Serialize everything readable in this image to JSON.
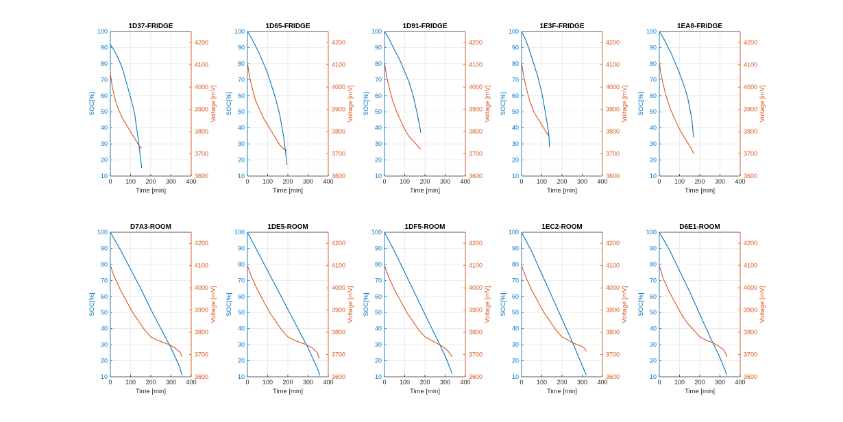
{
  "colors": {
    "soc": "#0072BD",
    "voltage": "#D95319",
    "axis_dark": "#262626",
    "grid": "#E6E6E6"
  },
  "chart_data": [
    {
      "type": "line",
      "title": "1D37-FRIDGE",
      "xlabel": "Time [min]",
      "ylabel_left": "SOC[%]",
      "ylabel_right": "Voltage [mV]",
      "xlim": [
        0,
        400
      ],
      "ylim_left": [
        10,
        100
      ],
      "ylim_right": [
        3600,
        4250
      ],
      "xticks": [
        0,
        100,
        200,
        300,
        400
      ],
      "yticks_left": [
        10,
        20,
        30,
        40,
        50,
        60,
        70,
        80,
        90,
        100
      ],
      "yticks_right": [
        3600,
        3700,
        3800,
        3900,
        4000,
        4100,
        4200
      ],
      "grid": true,
      "series": [
        {
          "axis": "left",
          "color": "#0072BD",
          "x": [
            0,
            20,
            40,
            60,
            80,
            100,
            120,
            140,
            155
          ],
          "y": [
            92,
            88,
            83,
            77,
            68,
            59,
            49,
            31,
            15
          ]
        },
        {
          "axis": "right",
          "color": "#D95319",
          "x": [
            0,
            10,
            25,
            40,
            60,
            80,
            100,
            120,
            140,
            155
          ],
          "y": [
            4060,
            4000,
            3940,
            3900,
            3860,
            3830,
            3800,
            3770,
            3740,
            3725
          ]
        }
      ]
    },
    {
      "type": "line",
      "title": "1D65-FRIDGE",
      "xlabel": "Time [min]",
      "ylabel_left": "SOC[%]",
      "ylabel_right": "Voltage [mV]",
      "xlim": [
        0,
        400
      ],
      "ylim_left": [
        10,
        100
      ],
      "ylim_right": [
        3600,
        4250
      ],
      "xticks": [
        0,
        100,
        200,
        300,
        400
      ],
      "yticks_left": [
        10,
        20,
        30,
        40,
        50,
        60,
        70,
        80,
        90,
        100
      ],
      "yticks_right": [
        3600,
        3700,
        3800,
        3900,
        4000,
        4100,
        4200
      ],
      "grid": true,
      "series": [
        {
          "axis": "left",
          "color": "#0072BD",
          "x": [
            0,
            20,
            40,
            60,
            80,
            100,
            120,
            140,
            160,
            180,
            196
          ],
          "y": [
            100,
            96,
            91,
            86,
            80,
            74,
            66,
            58,
            48,
            34,
            17
          ]
        },
        {
          "axis": "right",
          "color": "#D95319",
          "x": [
            0,
            10,
            25,
            40,
            60,
            80,
            100,
            120,
            140,
            160,
            180,
            196
          ],
          "y": [
            4110,
            4050,
            3990,
            3940,
            3900,
            3860,
            3830,
            3800,
            3770,
            3740,
            3720,
            3715
          ]
        }
      ]
    },
    {
      "type": "line",
      "title": "1D91-FRIDGE",
      "xlabel": "Time [min]",
      "ylabel_left": "SOC[%]",
      "ylabel_right": "Voltage [mV]",
      "xlim": [
        0,
        400
      ],
      "ylim_left": [
        10,
        100
      ],
      "ylim_right": [
        3600,
        4250
      ],
      "xticks": [
        0,
        100,
        200,
        300,
        400
      ],
      "yticks_left": [
        10,
        20,
        30,
        40,
        50,
        60,
        70,
        80,
        90,
        100
      ],
      "yticks_right": [
        3600,
        3700,
        3800,
        3900,
        4000,
        4100,
        4200
      ],
      "grid": true,
      "series": [
        {
          "axis": "left",
          "color": "#0072BD",
          "x": [
            0,
            20,
            40,
            60,
            80,
            100,
            120,
            140,
            160,
            180
          ],
          "y": [
            100,
            96,
            91,
            86,
            81,
            75,
            69,
            61,
            50,
            37
          ]
        },
        {
          "axis": "right",
          "color": "#D95319",
          "x": [
            0,
            10,
            25,
            40,
            60,
            80,
            100,
            120,
            140,
            160,
            180
          ],
          "y": [
            4110,
            4050,
            3990,
            3940,
            3890,
            3850,
            3810,
            3780,
            3760,
            3740,
            3720
          ]
        }
      ]
    },
    {
      "type": "line",
      "title": "1E3F-FRIDGE",
      "xlabel": "Time [min]",
      "ylabel_left": "SOC[%]",
      "ylabel_right": "Voltage [mV]",
      "xlim": [
        0,
        400
      ],
      "ylim_left": [
        10,
        100
      ],
      "ylim_right": [
        3600,
        4250
      ],
      "xticks": [
        0,
        100,
        200,
        300,
        400
      ],
      "yticks_left": [
        10,
        20,
        30,
        40,
        50,
        60,
        70,
        80,
        90,
        100
      ],
      "yticks_right": [
        3600,
        3700,
        3800,
        3900,
        4000,
        4100,
        4200
      ],
      "grid": true,
      "series": [
        {
          "axis": "left",
          "color": "#0072BD",
          "x": [
            0,
            20,
            40,
            60,
            80,
            100,
            120,
            135,
            138
          ],
          "y": [
            100,
            95,
            88,
            80,
            72,
            62,
            48,
            36,
            28
          ]
        },
        {
          "axis": "right",
          "color": "#D95319",
          "x": [
            0,
            10,
            25,
            40,
            60,
            80,
            100,
            120,
            135
          ],
          "y": [
            4110,
            4050,
            3990,
            3940,
            3890,
            3860,
            3830,
            3800,
            3780
          ]
        }
      ]
    },
    {
      "type": "line",
      "title": "1EA8-FRIDGE",
      "xlabel": "Time [min]",
      "ylabel_left": "SOC[%]",
      "ylabel_right": "Voltage [mV]",
      "xlim": [
        0,
        400
      ],
      "ylim_left": [
        10,
        100
      ],
      "ylim_right": [
        3600,
        4250
      ],
      "xticks": [
        0,
        100,
        200,
        300,
        400
      ],
      "yticks_left": [
        10,
        20,
        30,
        40,
        50,
        60,
        70,
        80,
        90,
        100
      ],
      "yticks_right": [
        3600,
        3700,
        3800,
        3900,
        4000,
        4100,
        4200
      ],
      "grid": true,
      "series": [
        {
          "axis": "left",
          "color": "#0072BD",
          "x": [
            0,
            20,
            40,
            60,
            80,
            100,
            120,
            140,
            160,
            170
          ],
          "y": [
            100,
            96,
            91,
            86,
            80,
            74,
            67,
            59,
            46,
            34
          ]
        },
        {
          "axis": "right",
          "color": "#D95319",
          "x": [
            0,
            10,
            25,
            40,
            60,
            80,
            100,
            120,
            140,
            160,
            170
          ],
          "y": [
            4110,
            4050,
            3990,
            3940,
            3890,
            3850,
            3810,
            3780,
            3750,
            3720,
            3700
          ]
        }
      ]
    },
    {
      "type": "line",
      "title": "D7A3-ROOM",
      "xlabel": "Time [min]",
      "ylabel_left": "SOC[%]",
      "ylabel_right": "Voltage [mV]",
      "xlim": [
        0,
        400
      ],
      "ylim_left": [
        10,
        100
      ],
      "ylim_right": [
        3600,
        4250
      ],
      "xticks": [
        0,
        100,
        200,
        300,
        400
      ],
      "yticks_left": [
        10,
        20,
        30,
        40,
        50,
        60,
        70,
        80,
        90,
        100
      ],
      "yticks_right": [
        3600,
        3700,
        3800,
        3900,
        4000,
        4100,
        4200
      ],
      "grid": true,
      "series": [
        {
          "axis": "left",
          "color": "#0072BD",
          "x": [
            0,
            50,
            100,
            150,
            200,
            250,
            300,
            340,
            355
          ],
          "y": [
            100,
            89,
            77,
            65,
            52,
            40,
            28,
            17,
            11
          ]
        },
        {
          "axis": "right",
          "color": "#D95319",
          "x": [
            0,
            20,
            50,
            80,
            110,
            140,
            170,
            200,
            230,
            260,
            290,
            320,
            345,
            355
          ],
          "y": [
            4100,
            4050,
            3990,
            3940,
            3890,
            3850,
            3810,
            3780,
            3765,
            3755,
            3745,
            3730,
            3710,
            3690
          ]
        }
      ]
    },
    {
      "type": "line",
      "title": "1DE5-ROOM",
      "xlabel": "Time [min]",
      "ylabel_left": "SOC[%]",
      "ylabel_right": "Voltage [mV]",
      "xlim": [
        0,
        400
      ],
      "ylim_left": [
        10,
        100
      ],
      "ylim_right": [
        3600,
        4250
      ],
      "xticks": [
        0,
        100,
        200,
        300,
        400
      ],
      "yticks_left": [
        10,
        20,
        30,
        40,
        50,
        60,
        70,
        80,
        90,
        100
      ],
      "yticks_right": [
        3600,
        3700,
        3800,
        3900,
        4000,
        4100,
        4200
      ],
      "grid": true,
      "series": [
        {
          "axis": "left",
          "color": "#0072BD",
          "x": [
            0,
            50,
            100,
            150,
            200,
            250,
            300,
            350,
            358
          ],
          "y": [
            100,
            88,
            76,
            64,
            52,
            40,
            28,
            14,
            11
          ]
        },
        {
          "axis": "right",
          "color": "#D95319",
          "x": [
            0,
            20,
            50,
            80,
            110,
            140,
            170,
            200,
            230,
            260,
            290,
            320,
            345,
            355
          ],
          "y": [
            4100,
            4050,
            3990,
            3940,
            3890,
            3850,
            3810,
            3780,
            3765,
            3755,
            3745,
            3730,
            3710,
            3680
          ]
        }
      ]
    },
    {
      "type": "line",
      "title": "1DF5-ROOM",
      "xlabel": "Time [min]",
      "ylabel_left": "SOC[%]",
      "ylabel_right": "Voltage [mV]",
      "xlim": [
        0,
        400
      ],
      "ylim_left": [
        10,
        100
      ],
      "ylim_right": [
        3600,
        4250
      ],
      "xticks": [
        0,
        100,
        200,
        300,
        400
      ],
      "yticks_left": [
        10,
        20,
        30,
        40,
        50,
        60,
        70,
        80,
        90,
        100
      ],
      "yticks_right": [
        3600,
        3700,
        3800,
        3900,
        4000,
        4100,
        4200
      ],
      "grid": true,
      "series": [
        {
          "axis": "left",
          "color": "#0072BD",
          "x": [
            0,
            50,
            100,
            150,
            200,
            250,
            300,
            335
          ],
          "y": [
            100,
            88,
            75,
            62,
            49,
            36,
            23,
            12
          ]
        },
        {
          "axis": "right",
          "color": "#D95319",
          "x": [
            0,
            20,
            50,
            80,
            110,
            140,
            170,
            200,
            230,
            260,
            290,
            315,
            335
          ],
          "y": [
            4100,
            4050,
            3990,
            3940,
            3890,
            3850,
            3810,
            3780,
            3765,
            3750,
            3735,
            3715,
            3690
          ]
        }
      ]
    },
    {
      "type": "line",
      "title": "1EC2-ROOM",
      "xlabel": "Time [min]",
      "ylabel_left": "SOC[%]",
      "ylabel_right": "Voltage [mV]",
      "xlim": [
        0,
        400
      ],
      "ylim_left": [
        10,
        100
      ],
      "ylim_right": [
        3600,
        4250
      ],
      "xticks": [
        0,
        100,
        200,
        300,
        400
      ],
      "yticks_left": [
        10,
        20,
        30,
        40,
        50,
        60,
        70,
        80,
        90,
        100
      ],
      "yticks_right": [
        3600,
        3700,
        3800,
        3900,
        4000,
        4100,
        4200
      ],
      "grid": true,
      "series": [
        {
          "axis": "left",
          "color": "#0072BD",
          "x": [
            0,
            50,
            100,
            150,
            200,
            250,
            280,
            310,
            320
          ],
          "y": [
            100,
            88,
            74,
            60,
            46,
            32,
            23,
            14,
            11
          ]
        },
        {
          "axis": "right",
          "color": "#D95319",
          "x": [
            0,
            20,
            50,
            80,
            110,
            140,
            170,
            200,
            230,
            260,
            290,
            310,
            320
          ],
          "y": [
            4100,
            4050,
            3990,
            3940,
            3890,
            3850,
            3810,
            3780,
            3765,
            3750,
            3740,
            3730,
            3715
          ]
        }
      ]
    },
    {
      "type": "line",
      "title": "D6E1-ROOM",
      "xlabel": "Time [min]",
      "ylabel_left": "SOC[%]",
      "ylabel_right": "Voltage [mV]",
      "xlim": [
        0,
        400
      ],
      "ylim_left": [
        10,
        100
      ],
      "ylim_right": [
        3600,
        4250
      ],
      "xticks": [
        0,
        100,
        200,
        300,
        400
      ],
      "yticks_left": [
        10,
        20,
        30,
        40,
        50,
        60,
        70,
        80,
        90,
        100
      ],
      "yticks_right": [
        3600,
        3700,
        3800,
        3900,
        4000,
        4100,
        4200
      ],
      "grid": true,
      "series": [
        {
          "axis": "left",
          "color": "#0072BD",
          "x": [
            0,
            50,
            100,
            150,
            200,
            250,
            300,
            335
          ],
          "y": [
            100,
            89,
            76,
            63,
            49,
            35,
            22,
            11
          ]
        },
        {
          "axis": "right",
          "color": "#D95319",
          "x": [
            0,
            20,
            50,
            80,
            110,
            140,
            170,
            200,
            230,
            260,
            290,
            320,
            335
          ],
          "y": [
            4100,
            4040,
            3980,
            3930,
            3880,
            3840,
            3810,
            3780,
            3765,
            3755,
            3740,
            3720,
            3690
          ]
        }
      ]
    }
  ]
}
